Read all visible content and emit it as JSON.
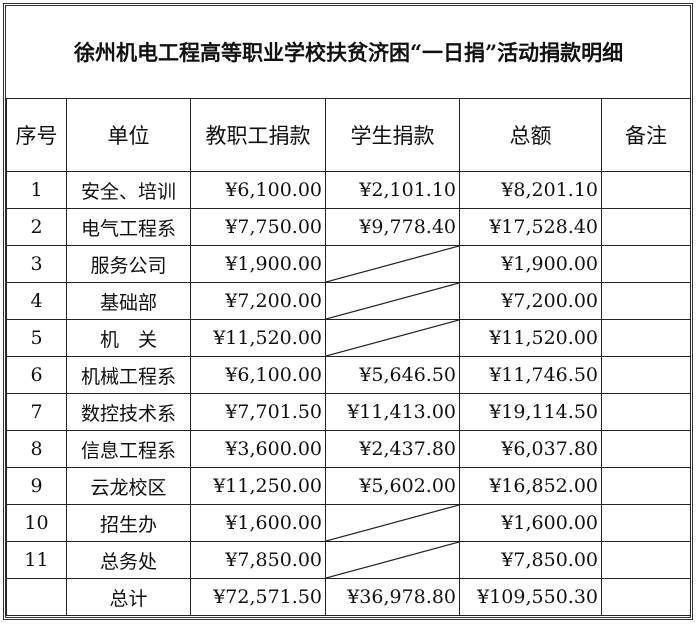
{
  "title": "徐州机电工程高等职业学校扶贫济困“一日捐”活动捐款明细",
  "headers": [
    "序号",
    "单位",
    "教职工捐款",
    "学生捐款",
    "总额",
    "备注"
  ],
  "rows": [
    {
      "no": "1",
      "unit": "安全、培训",
      "staff": "¥6,100.00",
      "student": "¥2,101.10",
      "total": "¥8,201.10",
      "note": ""
    },
    {
      "no": "2",
      "unit": "电气工程系",
      "staff": "¥7,750.00",
      "student": "¥9,778.40",
      "total": "¥17,528.40",
      "note": ""
    },
    {
      "no": "3",
      "unit": "服务公司",
      "staff": "¥1,900.00",
      "student": null,
      "total": "¥1,900.00",
      "note": ""
    },
    {
      "no": "4",
      "unit": "基础部",
      "staff": "¥7,200.00",
      "student": null,
      "total": "¥7,200.00",
      "note": ""
    },
    {
      "no": "5",
      "unit": "机　关",
      "staff": "¥11,520.00",
      "student": null,
      "total": "¥11,520.00",
      "note": ""
    },
    {
      "no": "6",
      "unit": "机械工程系",
      "staff": "¥6,100.00",
      "student": "¥5,646.50",
      "total": "¥11,746.50",
      "note": ""
    },
    {
      "no": "7",
      "unit": "数控技术系",
      "staff": "¥7,701.50",
      "student": "¥11,413.00",
      "total": "¥19,114.50",
      "note": ""
    },
    {
      "no": "8",
      "unit": "信息工程系",
      "staff": "¥3,600.00",
      "student": "¥2,437.80",
      "total": "¥6,037.80",
      "note": ""
    },
    {
      "no": "9",
      "unit": "云龙校区",
      "staff": "¥11,250.00",
      "student": "¥5,602.00",
      "total": "¥16,852.00",
      "note": ""
    },
    {
      "no": "10",
      "unit": "招生办",
      "staff": "¥1,600.00",
      "student": null,
      "total": "¥1,600.00",
      "note": ""
    },
    {
      "no": "11",
      "unit": "总务处",
      "staff": "¥7,850.00",
      "student": null,
      "total": "¥7,850.00",
      "note": ""
    },
    {
      "no": "",
      "unit": "总计",
      "staff": "¥72,571.50",
      "student": "¥36,978.80",
      "total": "¥109,550.30",
      "note": ""
    }
  ]
}
